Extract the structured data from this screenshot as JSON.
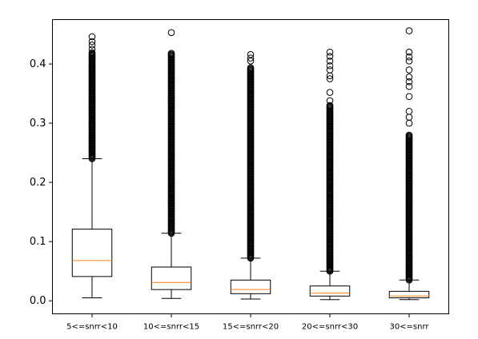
{
  "chart_data": {
    "type": "boxplot",
    "title": "",
    "xlabel": "",
    "ylabel": "",
    "ylim": [
      -0.022,
      0.475
    ],
    "yticks": [
      0.0,
      0.1,
      0.2,
      0.3,
      0.4
    ],
    "ytick_labels": [
      "0.0",
      "0.1",
      "0.2",
      "0.3",
      "0.4"
    ],
    "categories": [
      "5<=snrr<10",
      "10<=snrr<15",
      "15<=snrr<20",
      "20<=snrr<30",
      "30<=snrr"
    ],
    "colors": {
      "box": "#000000",
      "median": "#ff7f0e",
      "background": "#ffffff"
    },
    "boxes": [
      {
        "label": "5<=snrr<10",
        "whisker_low": 0.005,
        "q1": 0.041,
        "median": 0.068,
        "q3": 0.121,
        "whisker_high": 0.24,
        "outlier_range": [
          0.24,
          0.42
        ],
        "outliers": [
          0.425,
          0.432,
          0.438,
          0.446
        ]
      },
      {
        "label": "10<=snrr<15",
        "whisker_low": 0.004,
        "q1": 0.019,
        "median": 0.031,
        "q3": 0.057,
        "whisker_high": 0.114,
        "outlier_range": [
          0.114,
          0.418
        ],
        "outliers": [
          0.453
        ]
      },
      {
        "label": "15<=snrr<20",
        "whisker_low": 0.003,
        "q1": 0.012,
        "median": 0.019,
        "q3": 0.035,
        "whisker_high": 0.072,
        "outlier_range": [
          0.072,
          0.395
        ],
        "outliers": [
          0.405,
          0.41,
          0.416
        ]
      },
      {
        "label": "20<=snrr<30",
        "whisker_low": 0.002,
        "q1": 0.008,
        "median": 0.013,
        "q3": 0.025,
        "whisker_high": 0.05,
        "outlier_range": [
          0.05,
          0.33
        ],
        "outliers": [
          0.338,
          0.352,
          0.375,
          0.38,
          0.39,
          0.397,
          0.405,
          0.413,
          0.42
        ]
      },
      {
        "label": "30<=snrr",
        "whisker_low": 0.002,
        "q1": 0.005,
        "median": 0.008,
        "q3": 0.016,
        "whisker_high": 0.035,
        "outlier_range": [
          0.035,
          0.28
        ],
        "outliers": [
          0.3,
          0.31,
          0.32,
          0.345,
          0.362,
          0.37,
          0.378,
          0.39,
          0.405,
          0.412,
          0.42,
          0.456
        ]
      }
    ]
  }
}
